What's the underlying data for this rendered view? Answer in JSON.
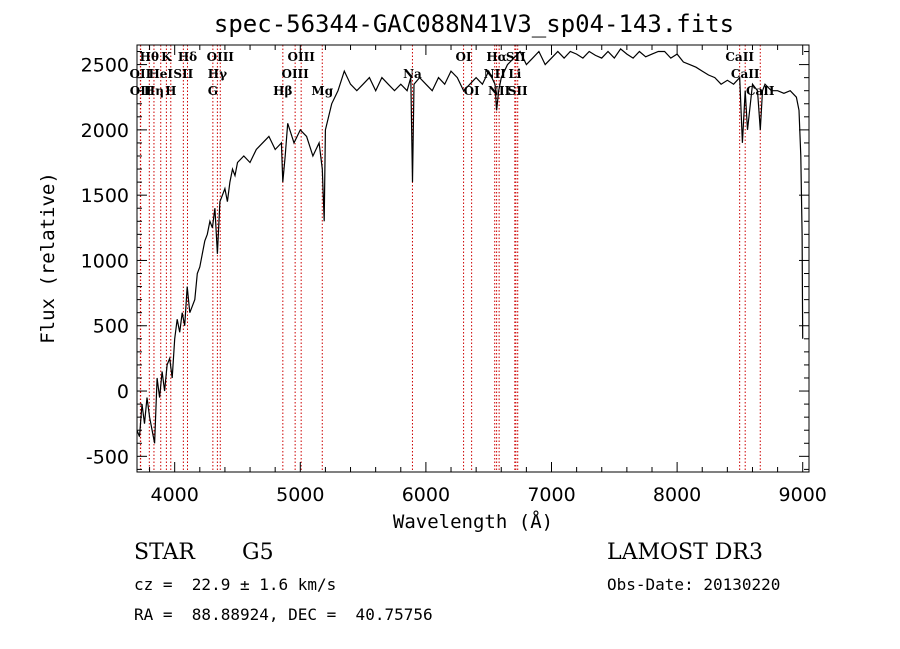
{
  "chart_data": {
    "type": "line",
    "title": "spec-56344-GAC088N41V3_sp04-143.fits",
    "xlabel": "Wavelength (Å)",
    "ylabel": "Flux (relative)",
    "xlim": [
      3700,
      9050
    ],
    "ylim": [
      -620,
      2650
    ],
    "x_ticks": [
      4000,
      5000,
      6000,
      7000,
      8000,
      9000
    ],
    "y_ticks": [
      -500,
      0,
      500,
      1000,
      1500,
      2000,
      2500
    ],
    "series": [
      {
        "name": "flux",
        "x": [
          3700,
          3720,
          3740,
          3760,
          3780,
          3800,
          3820,
          3840,
          3860,
          3880,
          3900,
          3920,
          3940,
          3960,
          3980,
          4000,
          4020,
          4040,
          4060,
          4080,
          4100,
          4120,
          4140,
          4160,
          4180,
          4200,
          4220,
          4240,
          4260,
          4280,
          4300,
          4320,
          4340,
          4360,
          4380,
          4400,
          4420,
          4440,
          4460,
          4480,
          4500,
          4550,
          4600,
          4650,
          4700,
          4750,
          4800,
          4850,
          4861,
          4880,
          4900,
          4950,
          5000,
          5050,
          5100,
          5150,
          5175,
          5190,
          5200,
          5250,
          5300,
          5350,
          5400,
          5450,
          5500,
          5550,
          5600,
          5650,
          5700,
          5750,
          5800,
          5850,
          5880,
          5893,
          5905,
          5950,
          6000,
          6050,
          6100,
          6150,
          6200,
          6250,
          6300,
          6350,
          6400,
          6450,
          6500,
          6550,
          6563,
          6580,
          6600,
          6650,
          6700,
          6750,
          6800,
          6850,
          6900,
          6950,
          7000,
          7050,
          7100,
          7150,
          7200,
          7250,
          7300,
          7350,
          7400,
          7450,
          7500,
          7550,
          7600,
          7650,
          7700,
          7750,
          7800,
          7850,
          7900,
          7950,
          8000,
          8050,
          8100,
          8150,
          8200,
          8250,
          8300,
          8350,
          8400,
          8450,
          8498,
          8520,
          8542,
          8560,
          8600,
          8640,
          8662,
          8680,
          8700,
          8750,
          8800,
          8850,
          8900,
          8950,
          8970,
          8985,
          8995,
          9000
        ],
        "y": [
          -300,
          -350,
          -100,
          -250,
          -50,
          -200,
          -300,
          -400,
          100,
          -50,
          150,
          0,
          200,
          250,
          100,
          400,
          550,
          450,
          600,
          500,
          800,
          600,
          650,
          700,
          900,
          950,
          1050,
          1150,
          1200,
          1300,
          1250,
          1400,
          1050,
          1450,
          1500,
          1550,
          1450,
          1600,
          1700,
          1650,
          1750,
          1800,
          1750,
          1850,
          1900,
          1950,
          1850,
          1900,
          1600,
          1800,
          2050,
          1900,
          2000,
          1950,
          1800,
          1900,
          1700,
          1300,
          2000,
          2200,
          2300,
          2450,
          2350,
          2300,
          2350,
          2400,
          2300,
          2400,
          2350,
          2300,
          2350,
          2300,
          2400,
          1600,
          2350,
          2400,
          2350,
          2300,
          2400,
          2350,
          2450,
          2400,
          2300,
          2350,
          2400,
          2350,
          2450,
          2350,
          2150,
          2300,
          2400,
          2500,
          2550,
          2600,
          2500,
          2550,
          2600,
          2500,
          2550,
          2600,
          2550,
          2600,
          2580,
          2550,
          2600,
          2570,
          2550,
          2600,
          2550,
          2620,
          2580,
          2550,
          2600,
          2560,
          2580,
          2600,
          2600,
          2550,
          2580,
          2520,
          2500,
          2480,
          2450,
          2420,
          2400,
          2350,
          2380,
          2350,
          2400,
          1900,
          2300,
          2000,
          2350,
          2300,
          2000,
          2300,
          2350,
          2300,
          2300,
          2280,
          2300,
          2250,
          2150,
          1800,
          1200,
          400
        ]
      }
    ],
    "spectral_lines": [
      {
        "label": "Hθ",
        "x": 3798,
        "row": 1
      },
      {
        "label": "OII",
        "x": 3727,
        "row": 2
      },
      {
        "label": "OII",
        "x": 3729,
        "row": 3
      },
      {
        "label": "Hη",
        "x": 3835,
        "row": 3
      },
      {
        "label": "HeI",
        "x": 3889,
        "row": 2
      },
      {
        "label": "K",
        "x": 3934,
        "row": 1
      },
      {
        "label": "SII",
        "x": 4069,
        "row": 2
      },
      {
        "label": "H",
        "x": 3969,
        "row": 3
      },
      {
        "label": "Hδ",
        "x": 4102,
        "row": 1
      },
      {
        "label": "OIII",
        "x": 4363,
        "row": 1
      },
      {
        "label": "Hγ",
        "x": 4340,
        "row": 2
      },
      {
        "label": "G",
        "x": 4304,
        "row": 3
      },
      {
        "label": "Hβ",
        "x": 4861,
        "row": 3
      },
      {
        "label": "OIII",
        "x": 5007,
        "row": 1
      },
      {
        "label": "OIII",
        "x": 4959,
        "row": 2
      },
      {
        "label": "Mg",
        "x": 5175,
        "row": 3
      },
      {
        "label": "Na",
        "x": 5893,
        "row": 2
      },
      {
        "label": "OI",
        "x": 6300,
        "row": 1
      },
      {
        "label": "OI",
        "x": 6364,
        "row": 3
      },
      {
        "label": "Hα",
        "x": 6563,
        "row": 1
      },
      {
        "label": "SII",
        "x": 6716,
        "row": 1
      },
      {
        "label": "NII",
        "x": 6548,
        "row": 2
      },
      {
        "label": "Li",
        "x": 6708,
        "row": 2
      },
      {
        "label": "NII",
        "x": 6583,
        "row": 3
      },
      {
        "label": "SII",
        "x": 6731,
        "row": 3
      },
      {
        "label": "CaII",
        "x": 8498,
        "row": 1
      },
      {
        "label": "CaII",
        "x": 8542,
        "row": 2
      },
      {
        "label": "CaII",
        "x": 8662,
        "row": 3
      }
    ]
  },
  "info": {
    "object_class": "STAR",
    "subclass": "G5",
    "survey": "LAMOST DR3",
    "redshift": "cz =  22.9 ± 1.6 km/s",
    "obs_date": "Obs-Date: 20130220",
    "coords": "RA =  88.88924, DEC =  40.75756"
  },
  "colors": {
    "spectrum": "#000000",
    "line_marker": "#cc0000",
    "axes": "#000000"
  }
}
